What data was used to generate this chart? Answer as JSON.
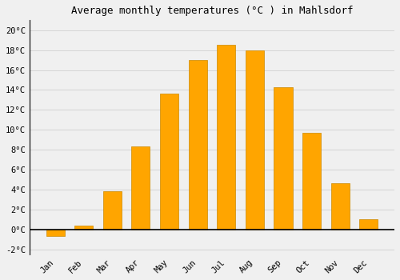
{
  "months": [
    "Jan",
    "Feb",
    "Mar",
    "Apr",
    "May",
    "Jun",
    "Jul",
    "Aug",
    "Sep",
    "Oct",
    "Nov",
    "Dec"
  ],
  "values": [
    -0.7,
    0.4,
    3.8,
    8.3,
    13.6,
    17.0,
    18.5,
    18.0,
    14.3,
    9.7,
    4.6,
    1.0
  ],
  "bar_color": "#FFA500",
  "bar_edge_color": "#CC8800",
  "title": "Average monthly temperatures (°C ) in Mahlsdorf",
  "ylim": [
    -2.5,
    21.0
  ],
  "yticks": [
    -2,
    0,
    2,
    4,
    6,
    8,
    10,
    12,
    14,
    16,
    18,
    20
  ],
  "ytick_labels": [
    "-2°C",
    "0°C",
    "2°C",
    "4°C",
    "6°C",
    "8°C",
    "10°C",
    "12°C",
    "14°C",
    "16°C",
    "18°C",
    "20°C"
  ],
  "background_color": "#f0f0f0",
  "grid_color": "#d0d0d0",
  "title_fontsize": 9,
  "tick_fontsize": 7.5,
  "bar_width": 0.65
}
